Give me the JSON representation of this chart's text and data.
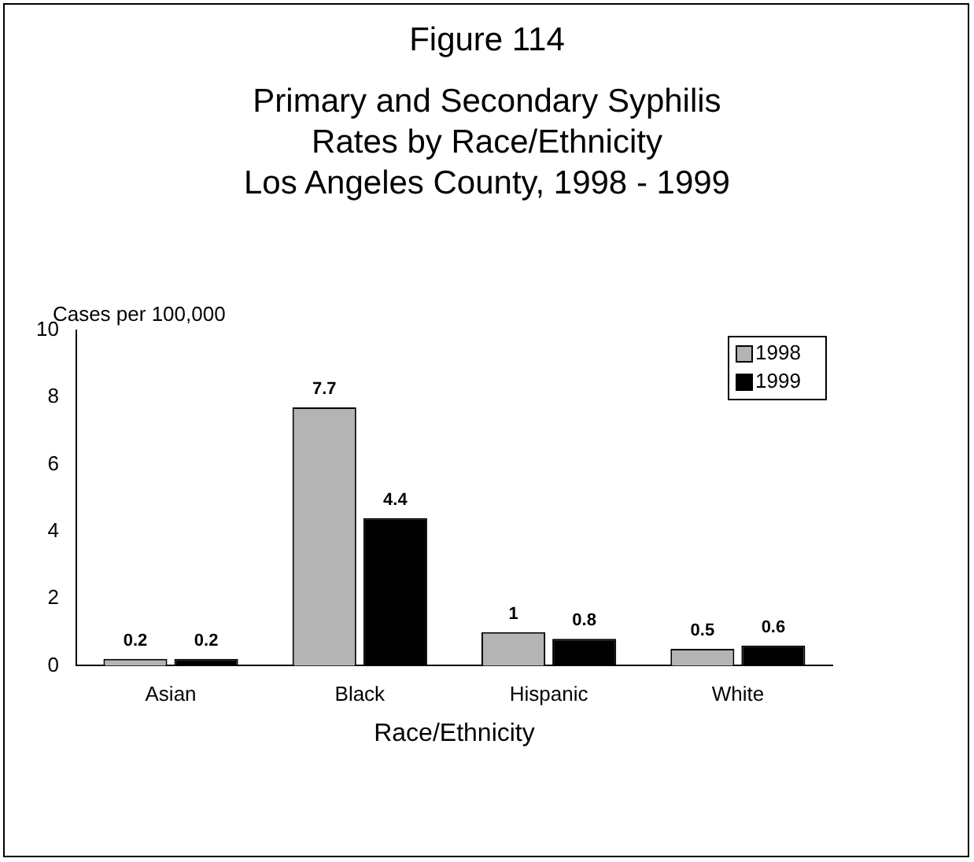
{
  "chart_data": {
    "type": "bar",
    "title": "Figure 114",
    "subtitle": "Primary and Secondary Syphilis\nRates by Race/Ethnicity\nLos Angeles County, 1998 - 1999",
    "ylabel": "Cases per 100,000",
    "xlabel": "Race/Ethnicity",
    "categories": [
      "Asian",
      "Black",
      "Hispanic",
      "White"
    ],
    "series": [
      {
        "name": "1998",
        "color": "#b4b4b4",
        "values": [
          0.2,
          7.7,
          1,
          0.5
        ]
      },
      {
        "name": "1999",
        "color": "#000000",
        "values": [
          0.2,
          4.4,
          0.8,
          0.6
        ]
      }
    ],
    "ylim": [
      0,
      10
    ],
    "yticks": [
      0,
      2,
      4,
      6,
      8,
      10
    ],
    "grid": false,
    "legend": "top right",
    "data_labels": true
  }
}
